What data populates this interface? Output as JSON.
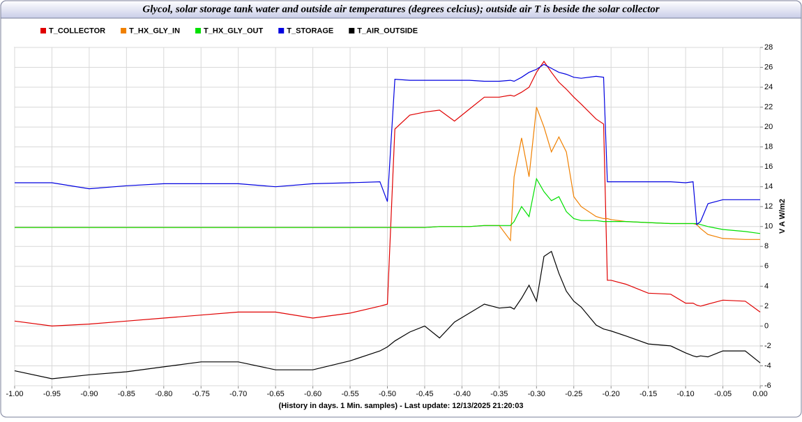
{
  "chart_data": {
    "type": "line",
    "title": "Glycol, solar storage tank water and outside air temperatures (degrees celcius); outside air T is beside the solar collector",
    "x_label": "(History in days. 1 Min. samples) - Last update: 12/13/2025 21:20:03",
    "y_label": "V A W/m2",
    "x": [
      -1.0,
      -0.95,
      -0.9,
      -0.85,
      -0.8,
      -0.75,
      -0.7,
      -0.65,
      -0.6,
      -0.55,
      -0.51,
      -0.5,
      -0.49,
      -0.47,
      -0.45,
      -0.43,
      -0.41,
      -0.39,
      -0.37,
      -0.35,
      -0.335,
      -0.33,
      -0.32,
      -0.31,
      -0.3,
      -0.29,
      -0.28,
      -0.27,
      -0.26,
      -0.25,
      -0.24,
      -0.22,
      -0.21,
      -0.205,
      -0.2,
      -0.18,
      -0.15,
      -0.12,
      -0.1,
      -0.09,
      -0.085,
      -0.08,
      -0.07,
      -0.05,
      -0.02,
      0.0
    ],
    "series": [
      {
        "name": "T_COLLECTOR",
        "color": "#e00000",
        "values": [
          0.5,
          0.0,
          0.2,
          0.5,
          0.8,
          1.1,
          1.4,
          1.4,
          0.8,
          1.3,
          2.0,
          2.2,
          19.8,
          21.2,
          21.5,
          21.7,
          20.6,
          21.8,
          23.0,
          23.0,
          23.2,
          23.1,
          23.5,
          24.0,
          25.5,
          26.6,
          25.5,
          24.5,
          23.8,
          23.0,
          22.3,
          20.8,
          20.3,
          4.6,
          4.6,
          4.2,
          3.3,
          3.2,
          2.3,
          2.3,
          2.1,
          2.0,
          2.2,
          2.6,
          2.5,
          1.4
        ]
      },
      {
        "name": "T_HX_GLY_IN",
        "color": "#f08000",
        "values": [
          9.9,
          9.9,
          9.9,
          9.9,
          9.9,
          9.9,
          9.9,
          9.9,
          9.9,
          9.9,
          9.9,
          9.9,
          9.9,
          9.9,
          9.9,
          10.0,
          10.0,
          10.0,
          10.1,
          10.1,
          8.6,
          15.0,
          18.9,
          15.0,
          22.0,
          20.0,
          17.5,
          19.0,
          17.5,
          13.0,
          12.0,
          11.0,
          10.8,
          10.8,
          10.7,
          10.5,
          10.4,
          10.3,
          10.3,
          10.3,
          10.2,
          9.8,
          9.2,
          8.8,
          8.7,
          8.7
        ]
      },
      {
        "name": "T_HX_GLY_OUT",
        "color": "#00e000",
        "values": [
          9.9,
          9.9,
          9.9,
          9.9,
          9.9,
          9.9,
          9.9,
          9.9,
          9.9,
          9.9,
          9.9,
          9.9,
          9.9,
          9.9,
          9.9,
          10.0,
          10.0,
          10.0,
          10.1,
          10.1,
          10.1,
          10.5,
          12.0,
          11.0,
          14.8,
          13.5,
          12.6,
          13.0,
          11.5,
          10.8,
          10.6,
          10.6,
          10.5,
          10.5,
          10.5,
          10.5,
          10.4,
          10.3,
          10.3,
          10.3,
          10.3,
          10.2,
          10.0,
          9.7,
          9.5,
          9.3
        ]
      },
      {
        "name": "T_STORAGE",
        "color": "#0000e0",
        "values": [
          14.4,
          14.4,
          13.8,
          14.1,
          14.3,
          14.3,
          14.3,
          14.0,
          14.3,
          14.4,
          14.5,
          12.5,
          24.8,
          24.7,
          24.7,
          24.7,
          24.7,
          24.7,
          24.6,
          24.6,
          24.7,
          24.6,
          25.0,
          25.5,
          25.8,
          26.3,
          25.9,
          25.5,
          25.3,
          25.0,
          24.9,
          25.1,
          25.0,
          14.5,
          14.5,
          14.5,
          14.5,
          14.5,
          14.4,
          14.5,
          10.2,
          10.5,
          12.3,
          12.7,
          12.7,
          12.7
        ]
      },
      {
        "name": "T_AIR_OUTSIDE",
        "color": "#000000",
        "values": [
          -4.5,
          -5.3,
          -4.9,
          -4.6,
          -4.1,
          -3.6,
          -3.6,
          -4.4,
          -4.4,
          -3.5,
          -2.5,
          -2.1,
          -1.5,
          -0.6,
          0.0,
          -1.2,
          0.4,
          1.3,
          2.2,
          1.8,
          1.9,
          1.7,
          2.8,
          4.1,
          2.5,
          7.0,
          7.5,
          5.3,
          3.5,
          2.5,
          1.9,
          0.1,
          -0.3,
          -0.4,
          -0.5,
          -1.0,
          -1.8,
          -2.0,
          -2.7,
          -3.0,
          -3.1,
          -3.0,
          -3.1,
          -2.5,
          -2.5,
          -3.7
        ]
      }
    ],
    "xlim": [
      -1.0,
      0.0
    ],
    "xticks": [
      {
        "value": -1.0,
        "label": "-1.00"
      },
      -0.95,
      {
        "value": -0.9,
        "label": "-0.90"
      },
      -0.85,
      {
        "value": -0.8,
        "label": "-0.80"
      },
      -0.75,
      {
        "value": -0.7,
        "label": "-0.70"
      },
      -0.65,
      {
        "value": -0.6,
        "label": "-0.60"
      },
      -0.55,
      {
        "value": -0.5,
        "label": "-0.50"
      },
      -0.45,
      {
        "value": -0.4,
        "label": "-0.40"
      },
      -0.35,
      {
        "value": -0.3,
        "label": "-0.30"
      },
      -0.25,
      {
        "value": -0.2,
        "label": "-0.20"
      },
      -0.15,
      {
        "value": -0.1,
        "label": "-0.10"
      },
      -0.05,
      {
        "value": 0.0,
        "label": "0.00"
      }
    ],
    "ylim": [
      -6,
      28
    ],
    "yticks": [
      -6,
      -4,
      -2,
      0,
      2,
      4,
      6,
      8,
      10,
      12,
      14,
      16,
      18,
      20,
      22,
      24,
      26,
      28
    ],
    "grid": true
  }
}
